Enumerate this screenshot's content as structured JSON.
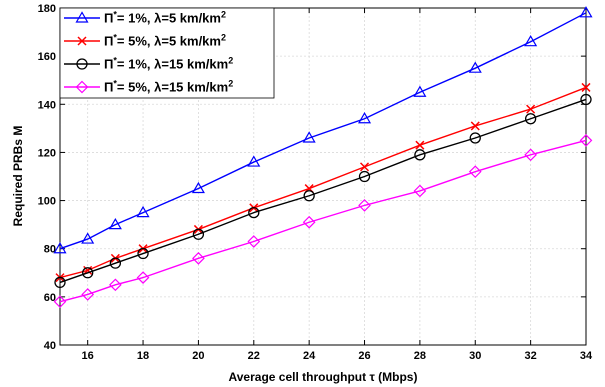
{
  "chart_data": {
    "type": "line",
    "title": "",
    "xlabel": "Average cell throughput τ (Mbps)",
    "ylabel": "Required PRBs M",
    "xlim": [
      15,
      34
    ],
    "ylim": [
      40,
      180
    ],
    "xticks": [
      16,
      18,
      20,
      22,
      24,
      26,
      28,
      30,
      32,
      34
    ],
    "yticks": [
      40,
      60,
      80,
      100,
      120,
      140,
      160,
      180
    ],
    "grid": true,
    "legend_position": "top-left",
    "x": [
      15,
      16,
      17,
      18,
      20,
      22,
      24,
      26,
      28,
      30,
      32,
      34
    ],
    "series": [
      {
        "legend": {
          "pi": "Π",
          "star": "*",
          "rest": "= 1%, λ=5 km/km",
          "sup": "2"
        },
        "color": "#0000ff",
        "marker": "triangle",
        "values": [
          80,
          84,
          90,
          95,
          105,
          116,
          126,
          134,
          145,
          155,
          166,
          178
        ]
      },
      {
        "legend": {
          "pi": "Π",
          "star": "*",
          "rest": "= 5%, λ=5 km/km",
          "sup": "2"
        },
        "color": "#ff0000",
        "marker": "x",
        "values": [
          68,
          71,
          76,
          80,
          88,
          97,
          105,
          114,
          123,
          131,
          138,
          147
        ]
      },
      {
        "legend": {
          "pi": "Π",
          "star": "*",
          "rest": "= 1%, λ=15 km/km",
          "sup": "2"
        },
        "color": "#000000",
        "marker": "circle",
        "values": [
          66,
          70,
          74,
          78,
          86,
          95,
          102,
          110,
          119,
          126,
          134,
          142
        ]
      },
      {
        "legend": {
          "pi": "Π",
          "star": "*",
          "rest": "= 5%, λ=15 km/km",
          "sup": "2"
        },
        "color": "#ff00ff",
        "marker": "diamond",
        "values": [
          58,
          61,
          65,
          68,
          76,
          83,
          91,
          98,
          104,
          112,
          119,
          125
        ]
      }
    ]
  }
}
